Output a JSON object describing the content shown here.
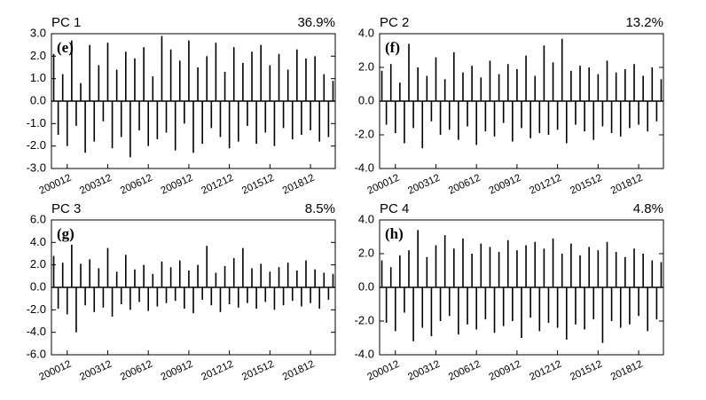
{
  "chart_data": [
    {
      "type": "bar",
      "title": "PC 1",
      "subtitle": "36.9%",
      "annotation": "(e)",
      "color": "#000000",
      "categories": [
        null,
        null,
        null,
        "200012",
        null,
        null,
        null,
        null,
        null,
        null,
        null,
        null,
        "200312",
        null,
        null,
        null,
        null,
        null,
        null,
        null,
        null,
        "200612",
        null,
        null,
        null,
        null,
        null,
        null,
        null,
        null,
        "200912",
        null,
        null,
        null,
        null,
        null,
        null,
        null,
        null,
        "201212",
        null,
        null,
        null,
        null,
        null,
        null,
        null,
        null,
        "201512",
        null,
        null,
        null,
        null,
        null,
        null,
        null,
        null,
        "201812",
        null,
        null,
        null,
        null,
        null
      ],
      "values": [
        2.1,
        -1.5,
        1.2,
        -2.0,
        2.7,
        -1.1,
        0.8,
        -2.3,
        2.5,
        -1.8,
        1.6,
        -0.9,
        2.6,
        -2.1,
        1.4,
        -1.6,
        2.2,
        -2.5,
        1.9,
        -1.3,
        2.4,
        -2.0,
        1.1,
        -1.7,
        2.9,
        -1.4,
        2.3,
        -2.2,
        1.8,
        -1.0,
        2.7,
        -2.3,
        1.5,
        -1.9,
        2.0,
        -1.2,
        2.6,
        -1.6,
        1.3,
        -2.1,
        2.4,
        -1.8,
        1.7,
        -1.1,
        2.2,
        -1.9,
        2.5,
        -1.4,
        1.6,
        -2.0,
        2.1,
        -1.2,
        1.4,
        -1.7,
        2.3,
        -1.5,
        1.9,
        -1.3,
        2.0,
        -1.8,
        1.2,
        -1.6,
        0.9
      ],
      "ylim": [
        -3,
        3
      ],
      "yticks": [
        {
          "value": -3,
          "label": "-3.0"
        },
        {
          "value": -2,
          "label": "-2.0"
        },
        {
          "value": -1,
          "label": "-1.0"
        },
        {
          "value": 0,
          "label": "0.0"
        },
        {
          "value": 1,
          "label": "1.0"
        },
        {
          "value": 2,
          "label": "2.0"
        },
        {
          "value": 3,
          "label": "3.0"
        }
      ]
    },
    {
      "type": "bar",
      "title": "PC 2",
      "subtitle": "13.2%",
      "annotation": "(f)",
      "color": "#000000",
      "categories": [
        null,
        null,
        null,
        "200012",
        null,
        null,
        null,
        null,
        null,
        null,
        null,
        null,
        "200312",
        null,
        null,
        null,
        null,
        null,
        null,
        null,
        null,
        "200612",
        null,
        null,
        null,
        null,
        null,
        null,
        null,
        null,
        "200912",
        null,
        null,
        null,
        null,
        null,
        null,
        null,
        null,
        "201212",
        null,
        null,
        null,
        null,
        null,
        null,
        null,
        null,
        "201512",
        null,
        null,
        null,
        null,
        null,
        null,
        null,
        null,
        "201812",
        null,
        null,
        null,
        null,
        null
      ],
      "values": [
        1.8,
        -1.4,
        2.2,
        -1.9,
        1.1,
        -2.5,
        3.4,
        -1.6,
        2.0,
        -2.8,
        1.5,
        -1.2,
        2.6,
        -2.0,
        1.3,
        -1.7,
        2.9,
        -2.3,
        1.7,
        -1.5,
        2.1,
        -2.6,
        1.4,
        -1.8,
        2.4,
        -2.1,
        1.6,
        -1.3,
        2.2,
        -2.4,
        1.9,
        -1.6,
        2.7,
        -2.2,
        1.5,
        -1.9,
        3.3,
        -2.0,
        2.3,
        -1.7,
        3.7,
        -2.5,
        1.8,
        -1.4,
        2.1,
        -1.8,
        2.0,
        -2.3,
        1.6,
        -1.5,
        2.4,
        -1.9,
        1.7,
        -2.1,
        1.9,
        -1.6,
        2.2,
        -1.4,
        1.5,
        -1.8,
        2.0,
        -1.2,
        1.3
      ],
      "ylim": [
        -4,
        4
      ],
      "yticks": [
        {
          "value": -4,
          "label": "-4.0"
        },
        {
          "value": -2,
          "label": "-2.0"
        },
        {
          "value": 0,
          "label": "0.0"
        },
        {
          "value": 2,
          "label": "2.0"
        },
        {
          "value": 4,
          "label": "4.0"
        }
      ]
    },
    {
      "type": "bar",
      "title": "PC 3",
      "subtitle": "8.5%",
      "annotation": "(g)",
      "color": "#000000",
      "categories": [
        null,
        null,
        null,
        "200012",
        null,
        null,
        null,
        null,
        null,
        null,
        null,
        null,
        "200312",
        null,
        null,
        null,
        null,
        null,
        null,
        null,
        null,
        "200612",
        null,
        null,
        null,
        null,
        null,
        null,
        null,
        null,
        "200912",
        null,
        null,
        null,
        null,
        null,
        null,
        null,
        null,
        "201212",
        null,
        null,
        null,
        null,
        null,
        null,
        null,
        null,
        "201512",
        null,
        null,
        null,
        null,
        null,
        null,
        null,
        null,
        "201812",
        null,
        null,
        null,
        null,
        null
      ],
      "values": [
        2.8,
        -1.9,
        2.2,
        -2.4,
        3.8,
        -4.0,
        2.1,
        -1.6,
        2.5,
        -2.2,
        1.7,
        -1.8,
        3.5,
        -2.6,
        1.4,
        -1.5,
        2.9,
        -2.0,
        1.6,
        -1.3,
        2.0,
        -2.1,
        1.2,
        -1.7,
        2.3,
        -1.4,
        1.8,
        -1.2,
        2.4,
        -1.9,
        1.5,
        -2.3,
        2.0,
        -1.1,
        3.7,
        -1.6,
        1.3,
        -2.2,
        1.9,
        -1.5,
        2.6,
        -1.8,
        3.5,
        -1.4,
        1.7,
        -1.9,
        2.1,
        -1.3,
        1.4,
        -2.0,
        1.8,
        -1.6,
        2.2,
        -1.2,
        1.5,
        -1.7,
        2.4,
        -1.4,
        1.6,
        -1.9,
        1.3,
        -1.1,
        1.2
      ],
      "ylim": [
        -6,
        6
      ],
      "yticks": [
        {
          "value": -6,
          "label": "-6.0"
        },
        {
          "value": -4,
          "label": "-4.0"
        },
        {
          "value": -2,
          "label": "-2.0"
        },
        {
          "value": 0,
          "label": "0.0"
        },
        {
          "value": 2,
          "label": "2.0"
        },
        {
          "value": 4,
          "label": "4.0"
        },
        {
          "value": 6,
          "label": "6.0"
        }
      ]
    },
    {
      "type": "bar",
      "title": "PC 4",
      "subtitle": "4.8%",
      "annotation": "(h)",
      "color": "#000000",
      "categories": [
        null,
        null,
        null,
        "200012",
        null,
        null,
        null,
        null,
        null,
        null,
        null,
        null,
        "200312",
        null,
        null,
        null,
        null,
        null,
        null,
        null,
        null,
        "200612",
        null,
        null,
        null,
        null,
        null,
        null,
        null,
        null,
        "200912",
        null,
        null,
        null,
        null,
        null,
        null,
        null,
        null,
        "201212",
        null,
        null,
        null,
        null,
        null,
        null,
        null,
        null,
        "201512",
        null,
        null,
        null,
        null,
        null,
        null,
        null,
        null,
        "201812",
        null,
        null,
        null,
        null,
        null
      ],
      "values": [
        1.6,
        -2.1,
        1.2,
        -2.6,
        1.9,
        -1.5,
        2.2,
        -3.2,
        3.4,
        -2.4,
        1.8,
        -2.9,
        2.5,
        -2.0,
        3.1,
        -1.7,
        2.3,
        -2.8,
        2.9,
        -2.2,
        2.0,
        -2.5,
        2.6,
        -1.9,
        2.4,
        -2.7,
        2.1,
        -2.3,
        2.8,
        -2.0,
        2.2,
        -3.0,
        2.5,
        -1.8,
        2.7,
        -2.6,
        2.3,
        -2.1,
        2.9,
        -2.4,
        2.0,
        -3.1,
        2.6,
        -2.2,
        1.9,
        -2.5,
        2.4,
        -1.9,
        2.2,
        -3.3,
        2.7,
        -2.0,
        2.1,
        -2.4,
        1.8,
        -2.2,
        2.3,
        -1.7,
        2.0,
        -2.6,
        1.6,
        -1.9,
        1.5
      ],
      "ylim": [
        -4,
        4
      ],
      "yticks": [
        {
          "value": -4,
          "label": "-4.0"
        },
        {
          "value": -2,
          "label": "-2.0"
        },
        {
          "value": 0,
          "label": "0.0"
        },
        {
          "value": 2,
          "label": "2.0"
        },
        {
          "value": 4,
          "label": "4.0"
        }
      ]
    }
  ]
}
